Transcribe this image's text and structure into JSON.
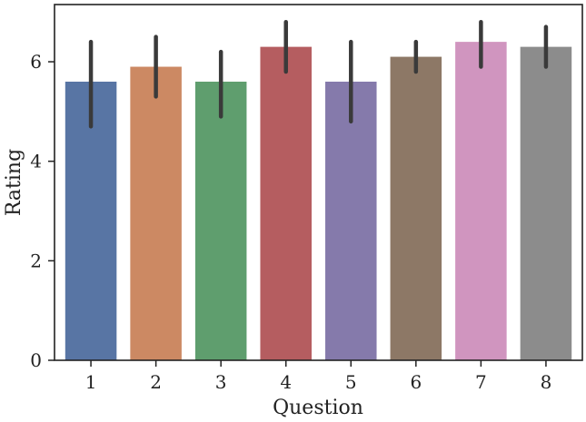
{
  "chart_data": {
    "type": "bar",
    "xlabel": "Question",
    "ylabel": "Rating",
    "categories": [
      "1",
      "2",
      "3",
      "4",
      "5",
      "6",
      "7",
      "8"
    ],
    "values": [
      5.6,
      5.9,
      5.6,
      6.3,
      5.6,
      6.1,
      6.4,
      6.3
    ],
    "error_low": [
      4.7,
      5.3,
      4.9,
      5.8,
      4.8,
      5.8,
      5.9,
      5.9
    ],
    "error_high": [
      6.4,
      6.5,
      6.2,
      6.8,
      6.4,
      6.4,
      6.8,
      6.7
    ],
    "colors": [
      "#5875a4",
      "#cc8963",
      "#5f9e6e",
      "#b55d60",
      "#857aab",
      "#8d7866",
      "#d095bf",
      "#8c8c8c"
    ],
    "error_color": "#3a3a3a",
    "ylim": [
      0,
      7.15
    ],
    "yticks": [
      0,
      2,
      4,
      6
    ],
    "ytick_labels": [
      "0",
      "2",
      "4",
      "6"
    ],
    "grid": false,
    "legend": "none"
  }
}
